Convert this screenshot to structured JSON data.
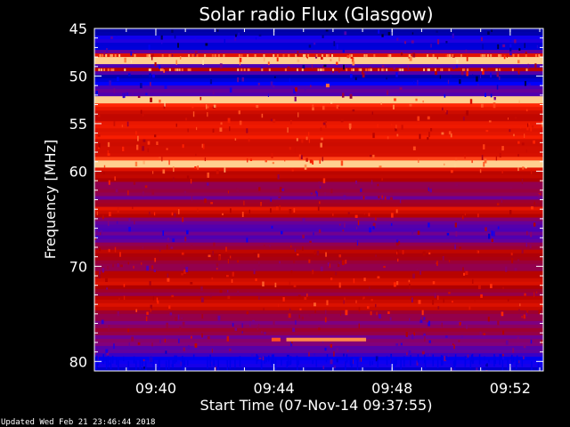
{
  "chart_data": {
    "type": "heatmap",
    "title": "Solar radio Flux (Glasgow)",
    "xlabel": "Start Time (07-Nov-14 09:37:55)",
    "ylabel": "Frequency [MHz]",
    "footer": "Updated Wed Feb 21 23:46:44 2018",
    "x_range_minutes": [
      0,
      15.2
    ],
    "x_start_clock": "09:37:55",
    "x_ticks": [
      {
        "label": "09:40",
        "minute": 2.08
      },
      {
        "label": "09:44",
        "minute": 6.08
      },
      {
        "label": "09:48",
        "minute": 10.08
      },
      {
        "label": "09:52",
        "minute": 14.08
      }
    ],
    "y_range_mhz": [
      45,
      81
    ],
    "y_ticks": [
      {
        "label": "45",
        "mhz": 45
      },
      {
        "label": "50",
        "mhz": 50
      },
      {
        "label": "55",
        "mhz": 55
      },
      {
        "label": "60",
        "mhz": 60
      },
      {
        "label": "70",
        "mhz": 70
      },
      {
        "label": "80",
        "mhz": 80
      }
    ],
    "grid": false,
    "colormap": [
      "#000033",
      "#0000ff",
      "#800080",
      "#b00000",
      "#ff2000",
      "#ff8040",
      "#ffe0a0"
    ],
    "freq_bands": [
      {
        "mhz": 45.0,
        "level": 0.05
      },
      {
        "mhz": 46.0,
        "level": 0.18
      },
      {
        "mhz": 47.0,
        "level": 0.08
      },
      {
        "mhz": 47.8,
        "level": 0.55
      },
      {
        "mhz": 48.3,
        "level": 0.95
      },
      {
        "mhz": 48.8,
        "level": 0.12
      },
      {
        "mhz": 49.3,
        "level": 0.55
      },
      {
        "mhz": 49.8,
        "level": 0.15
      },
      {
        "mhz": 50.5,
        "level": 0.12
      },
      {
        "mhz": 51.2,
        "level": 0.3
      },
      {
        "mhz": 52.0,
        "level": 0.22
      },
      {
        "mhz": 52.6,
        "level": 0.95
      },
      {
        "mhz": 53.2,
        "level": 0.6
      },
      {
        "mhz": 54.5,
        "level": 0.55
      },
      {
        "mhz": 56.0,
        "level": 0.62
      },
      {
        "mhz": 58.5,
        "level": 0.58
      },
      {
        "mhz": 59.2,
        "level": 0.92
      },
      {
        "mhz": 60.0,
        "level": 0.55
      },
      {
        "mhz": 61.5,
        "level": 0.4
      },
      {
        "mhz": 62.8,
        "level": 0.35
      },
      {
        "mhz": 64.1,
        "level": 0.62
      },
      {
        "mhz": 65.5,
        "level": 0.3
      },
      {
        "mhz": 66.8,
        "level": 0.25
      },
      {
        "mhz": 67.8,
        "level": 0.45
      },
      {
        "mhz": 68.8,
        "level": 0.55
      },
      {
        "mhz": 70.0,
        "level": 0.4
      },
      {
        "mhz": 71.6,
        "level": 0.58
      },
      {
        "mhz": 72.6,
        "level": 0.42
      },
      {
        "mhz": 74.0,
        "level": 0.6
      },
      {
        "mhz": 75.5,
        "level": 0.35
      },
      {
        "mhz": 77.0,
        "level": 0.4
      },
      {
        "mhz": 78.5,
        "level": 0.3
      },
      {
        "mhz": 80.0,
        "level": 0.15
      },
      {
        "mhz": 81.0,
        "level": 0.12
      }
    ],
    "bright_lines_mhz": [
      48.3,
      52.6,
      59.2
    ],
    "features": [
      {
        "mhz": 51.0,
        "minute": 7.9,
        "level": 0.8
      },
      {
        "mhz": 77.7,
        "minute_start": 6.5,
        "minute_end": 9.2,
        "level": 0.85
      },
      {
        "mhz": 77.7,
        "minute_start": 6.0,
        "minute_end": 6.3,
        "level": 0.75
      }
    ]
  }
}
